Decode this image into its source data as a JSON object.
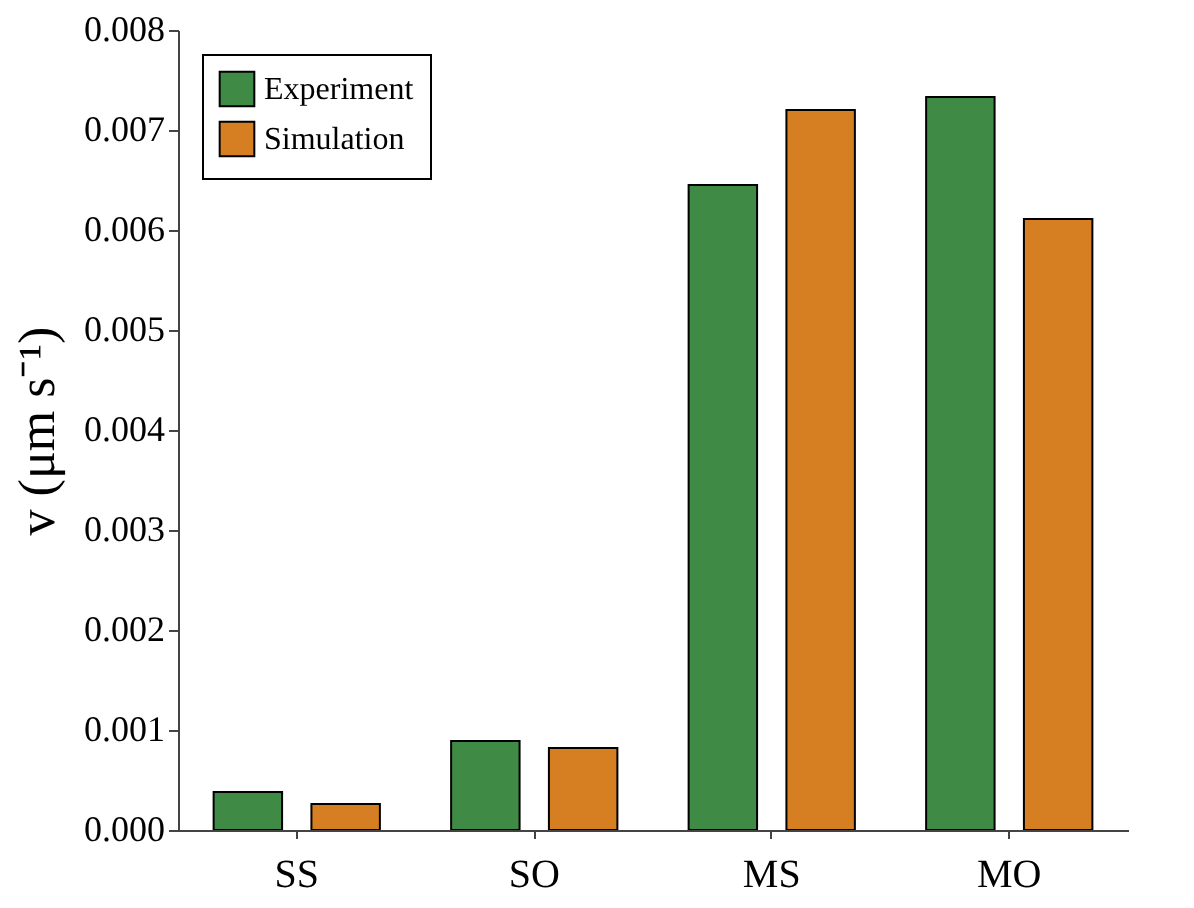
{
  "chart_data": {
    "type": "bar",
    "ylabel": "v (μm s⁻¹)",
    "categories": [
      "SS",
      "SO",
      "MS",
      "MO"
    ],
    "series": [
      {
        "name": "Experiment",
        "color": "#3f8a44",
        "values": [
          0.00038,
          0.00089,
          0.00645,
          0.00733
        ]
      },
      {
        "name": "Simulation",
        "color": "#d67f22",
        "values": [
          0.00026,
          0.00082,
          0.0072,
          0.00611
        ]
      }
    ],
    "ylim": [
      0,
      0.008
    ],
    "yticks": [
      {
        "value": 0,
        "label": "0.000"
      },
      {
        "value": 0.001,
        "label": "0.001"
      },
      {
        "value": 0.002,
        "label": "0.002"
      },
      {
        "value": 0.003,
        "label": "0.003"
      },
      {
        "value": 0.004,
        "label": "0.004"
      },
      {
        "value": 0.005,
        "label": "0.005"
      },
      {
        "value": 0.006,
        "label": "0.006"
      },
      {
        "value": 0.007,
        "label": "0.007"
      },
      {
        "value": 0.008,
        "label": "0.008"
      }
    ],
    "grid": false,
    "legend": "top left"
  }
}
